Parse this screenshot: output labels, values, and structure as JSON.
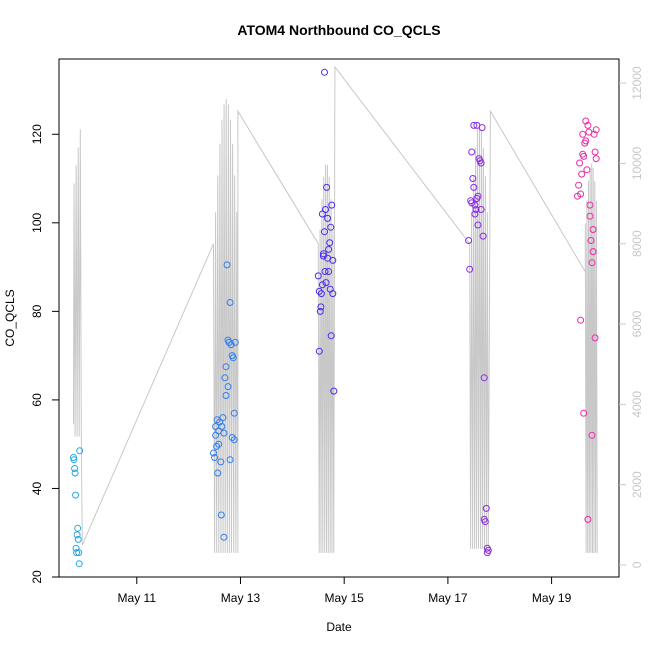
{
  "chart_data": {
    "type": "scatter",
    "title": "ATOM4 Northbound CO_QCLS",
    "xlabel": "Date",
    "ylabel": "CO_QCLS",
    "x_ticks": [
      "May 11",
      "May 13",
      "May 15",
      "May 17",
      "May 19"
    ],
    "x_tick_days": [
      11,
      13,
      15,
      17,
      19
    ],
    "xlim_day": [
      9.5,
      20.3
    ],
    "y_ticks": [
      20,
      40,
      60,
      80,
      100,
      120
    ],
    "ylim": [
      20,
      137
    ],
    "y2_ticks": [
      "0",
      "2000",
      "4000",
      "6000",
      "8000",
      "10000",
      "12000"
    ],
    "y2_tick_values": [
      0,
      2000,
      4000,
      6000,
      8000,
      10000,
      12000
    ],
    "y2lim": [
      -300,
      12600
    ],
    "grid": false,
    "line_color": "#c8c8c8",
    "series": [
      {
        "color": "#29a8e0",
        "x_day": [
          9.78,
          9.79,
          9.8,
          9.81,
          9.82,
          9.83,
          9.84,
          9.85,
          9.86,
          9.87,
          9.88,
          9.89,
          9.9
        ],
        "y": [
          47,
          46.5,
          44.5,
          43.5,
          38.5,
          26.5,
          25.5,
          29.5,
          31,
          28.5,
          25.5,
          23,
          48.5
        ]
      },
      {
        "color": "#2f7ef0",
        "x_day": [
          12.48,
          12.5,
          12.52,
          12.54,
          12.56,
          12.58,
          12.6,
          12.62,
          12.64,
          12.66,
          12.68,
          12.7,
          12.72,
          12.74,
          12.76,
          12.78,
          12.8,
          12.82,
          12.84,
          12.86,
          12.88,
          12.9,
          12.52,
          12.58,
          12.63,
          12.68,
          12.72,
          12.76,
          12.8,
          12.84,
          12.88,
          12.55
        ],
        "y": [
          48,
          47,
          54,
          49.5,
          43.5,
          53,
          55,
          46,
          54,
          56,
          52.5,
          65,
          61,
          90.5,
          63,
          73,
          82,
          72.5,
          70,
          69.5,
          51,
          73,
          52,
          50,
          34,
          29,
          67.5,
          73.5,
          46.5,
          51.5,
          57,
          55.5
        ]
      },
      {
        "color": "#4a2cf0",
        "x_day": [
          14.5,
          14.52,
          14.54,
          14.56,
          14.58,
          14.6,
          14.62,
          14.64,
          14.66,
          14.68,
          14.7,
          14.72,
          14.74,
          14.76,
          14.78,
          14.8,
          14.55,
          14.6,
          14.65,
          14.7,
          14.75,
          14.52,
          14.58,
          14.63,
          14.68,
          14.73,
          14.78,
          14.62
        ],
        "y": [
          88,
          71,
          80,
          84,
          86,
          92.5,
          98,
          103,
          108,
          101,
          94,
          95.5,
          99,
          104,
          91.5,
          62,
          81,
          93,
          86.5,
          89,
          74.5,
          84.5,
          102,
          89,
          92,
          85,
          84,
          134
        ]
      },
      {
        "color": "#8a2be2",
        "x_day": [
          17.4,
          17.42,
          17.44,
          17.46,
          17.48,
          17.5,
          17.52,
          17.54,
          17.56,
          17.58,
          17.6,
          17.62,
          17.64,
          17.66,
          17.68,
          17.7,
          17.72,
          17.74,
          17.76,
          17.78,
          17.46,
          17.52,
          17.58,
          17.64,
          17.7,
          17.76,
          17.5,
          17.56
        ],
        "y": [
          96,
          89.5,
          105,
          104.5,
          110,
          122,
          104,
          103,
          105.5,
          106,
          114.5,
          114,
          113.5,
          121.5,
          97,
          65,
          32.5,
          35.5,
          26.5,
          26,
          116,
          102,
          99.5,
          103,
          33,
          25.5,
          108,
          122
        ]
      },
      {
        "color": "#ee2aa8",
        "x_day": [
          19.5,
          19.52,
          19.54,
          19.56,
          19.58,
          19.6,
          19.62,
          19.64,
          19.66,
          19.68,
          19.7,
          19.72,
          19.74,
          19.76,
          19.78,
          19.8,
          19.82,
          19.84,
          19.86,
          19.56,
          19.62,
          19.7,
          19.78,
          19.84,
          19.6,
          19.66,
          19.74,
          19.8,
          19.86
        ],
        "y": [
          106,
          108.5,
          113.5,
          106.5,
          111,
          120,
          115,
          118,
          123,
          112,
          122,
          120.5,
          104,
          96,
          91,
          93.5,
          120,
          116,
          114.5,
          78,
          57,
          33,
          52,
          74,
          115.5,
          118.5,
          101.5,
          98.5,
          121
        ]
      }
    ]
  }
}
